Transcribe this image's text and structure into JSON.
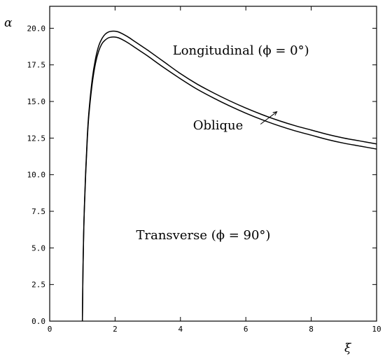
{
  "chart_data": {
    "type": "line",
    "xlabel": "ξ",
    "ylabel": "α",
    "xlim": [
      0,
      10
    ],
    "ylim": [
      0,
      21.5
    ],
    "x_ticks": [
      0,
      2,
      4,
      6,
      8,
      10
    ],
    "x_tick_labels": [
      "0",
      "2",
      "4",
      "6",
      "8",
      "10"
    ],
    "y_ticks": [
      0,
      2.5,
      5,
      7.5,
      10,
      12.5,
      15,
      17.5,
      20
    ],
    "y_tick_labels": [
      "0.0",
      "2.5",
      "5.0",
      "7.5",
      "10.0",
      "12.5",
      "15.0",
      "17.5",
      "20.0"
    ],
    "grid": false,
    "series": [
      {
        "x": [
          1.0,
          1.02,
          1.05,
          1.1,
          1.15,
          1.2,
          1.3,
          1.4,
          1.5,
          1.6,
          1.7,
          1.8,
          1.9,
          2.0,
          2.1,
          2.2,
          2.4,
          2.6,
          2.8,
          3.0,
          3.5,
          4.0,
          4.5,
          5.0,
          5.5,
          6.0,
          6.5,
          7.0,
          7.5,
          8.0,
          8.5,
          9.0,
          9.5,
          10.0
        ],
        "y": [
          0.0,
          3.8,
          7.0,
          10.2,
          12.6,
          14.3,
          16.5,
          17.9,
          18.8,
          19.3,
          19.6,
          19.75,
          19.8,
          19.8,
          19.75,
          19.65,
          19.4,
          19.1,
          18.8,
          18.5,
          17.7,
          16.9,
          16.2,
          15.6,
          15.05,
          14.55,
          14.1,
          13.7,
          13.35,
          13.05,
          12.75,
          12.5,
          12.3,
          12.1
        ]
      },
      {
        "x": [
          1.0,
          1.02,
          1.05,
          1.1,
          1.15,
          1.2,
          1.3,
          1.4,
          1.5,
          1.6,
          1.7,
          1.8,
          1.9,
          2.0,
          2.1,
          2.2,
          2.4,
          2.6,
          2.8,
          3.0,
          3.5,
          4.0,
          4.5,
          5.0,
          5.5,
          6.0,
          6.5,
          7.0,
          7.5,
          8.0,
          8.5,
          9.0,
          9.5,
          10.0
        ],
        "y": [
          0.0,
          3.7,
          6.9,
          10.0,
          12.4,
          14.1,
          16.2,
          17.6,
          18.45,
          18.95,
          19.2,
          19.35,
          19.4,
          19.4,
          19.35,
          19.25,
          19.0,
          18.7,
          18.4,
          18.1,
          17.3,
          16.55,
          15.85,
          15.25,
          14.7,
          14.2,
          13.75,
          13.35,
          13.0,
          12.7,
          12.4,
          12.15,
          11.95,
          11.75
        ]
      }
    ],
    "annotations": [
      {
        "text": "Longitudinal (ϕ = 0°)",
        "x": 5.85,
        "y": 18.2
      },
      {
        "text": "Oblique",
        "x": 5.15,
        "y": 13.1
      },
      {
        "text": "Transverse (ϕ = 90°)",
        "x": 4.7,
        "y": 5.6
      }
    ],
    "arrow": {
      "from": [
        6.45,
        13.45
      ],
      "to": [
        6.95,
        14.3
      ]
    }
  }
}
